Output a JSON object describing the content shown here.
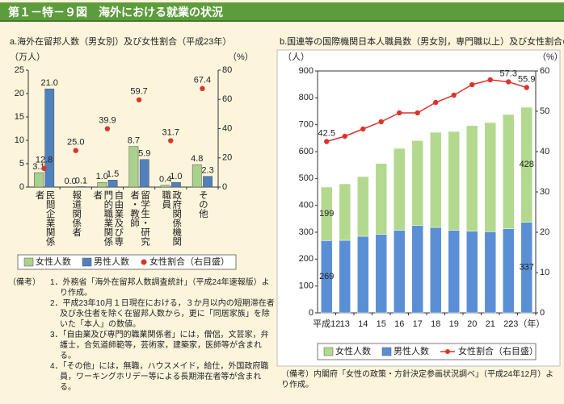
{
  "header": {
    "title": "第１－特－９図　海外における就業の状況"
  },
  "chart_data": [
    {
      "type": "bar",
      "title": "a.海外在留邦人数（男女別）及び女性割合（平成23年）",
      "y_label": "（万人）",
      "y2_label": "（%）",
      "categories": [
        "民間企業関係者",
        "報道関係者",
        "自由業及び専門的職業関係者",
        "留学生・研究者・教師",
        "政府関係機関職員",
        "その他"
      ],
      "series": [
        {
          "name": "女性人数",
          "color": "#a9d18e",
          "values": [
            3.1,
            0.0,
            1.0,
            8.7,
            0.4,
            4.8
          ],
          "value_labels": [
            "3.1",
            "0.0",
            "1.0",
            "8.7",
            "0.4",
            "4.8"
          ]
        },
        {
          "name": "男性人数",
          "color": "#4f81bd",
          "values": [
            21.0,
            0.1,
            1.5,
            5.9,
            1.0,
            2.3
          ],
          "value_labels": [
            "21.0",
            "0.1",
            "1.5",
            "5.9",
            "1.0",
            "2.3"
          ]
        },
        {
          "name": "女性割合（右目盛）",
          "type": "scatter",
          "axis": "y2",
          "color": "#d9352c",
          "values": [
            12.8,
            25.0,
            39.9,
            59.7,
            31.7,
            67.4
          ],
          "value_labels": [
            "12.8",
            "25.0",
            "39.9",
            "59.7",
            "31.7",
            "67.4"
          ]
        }
      ],
      "ylim": [
        0,
        25
      ],
      "yticks": [
        0,
        5,
        10,
        15,
        20,
        25
      ],
      "y2lim": [
        0,
        80
      ],
      "y2ticks": [
        0,
        20,
        40,
        60,
        80
      ]
    },
    {
      "type": "stacked_bar",
      "title": "b.国連等の国際機関日本人職員数（男女別，専門職以上）及び女性割合の推移",
      "y_label": "（人）",
      "y2_label": "（%）",
      "categories": [
        "平成12",
        "13",
        "14",
        "15",
        "16",
        "17",
        "18",
        "19",
        "20",
        "21",
        "22",
        "23（年）"
      ],
      "series": [
        {
          "name": "女性人数",
          "color": "#b3d98f",
          "values": [
            199,
            210,
            222,
            264,
            305,
            316,
            354,
            368,
            393,
            406,
            425,
            428
          ],
          "value_labels": [
            "199",
            null,
            null,
            null,
            null,
            null,
            null,
            null,
            null,
            null,
            null,
            "428"
          ]
        },
        {
          "name": "男性人数",
          "color": "#5a8fd6",
          "values": [
            269,
            270,
            285,
            292,
            307,
            325,
            318,
            307,
            304,
            302,
            313,
            337
          ],
          "value_labels": [
            "269",
            null,
            null,
            null,
            null,
            null,
            null,
            null,
            null,
            null,
            null,
            "337"
          ]
        },
        {
          "name": "女性割合（右目盛）",
          "type": "line",
          "axis": "y2",
          "color": "#d9352c",
          "values": [
            42.5,
            43.8,
            45.6,
            47.4,
            49.6,
            49.6,
            52.2,
            54.0,
            56.6,
            57.8,
            57.3,
            55.9
          ],
          "value_labels": [
            "42.5",
            null,
            null,
            null,
            null,
            null,
            null,
            null,
            null,
            null,
            "57.3",
            "55.9"
          ]
        }
      ],
      "ylim": [
        0,
        900
      ],
      "yticks": [
        0,
        100,
        200,
        300,
        400,
        500,
        600,
        700,
        800,
        900
      ],
      "y2lim": [
        0,
        60
      ],
      "y2ticks": [
        0,
        10,
        20,
        30,
        40,
        50,
        60
      ]
    }
  ],
  "notes_a": {
    "label": "（備考）",
    "items": [
      "1．外務省「海外在留邦人数調査統計」（平成24年速報版）より作成。",
      "2．平成23年10月１日現在における，３か月以内の短期滞在者及び永住者を除く在留邦人数から，更に「同居家族」を除いた「本人」の数値。",
      "3．「自由業及び専門的職業関係者」には，僧侶，文芸家，弁護士，合気道師範等，芸術家，建築家，医師等が含まれる。",
      "4．「その他」には，無職，ハウスメイド，給仕，外国政府職員，ワーキングホリデー等による長期滞在者等が含まれる。"
    ]
  },
  "notes_b": {
    "label": "（備考）",
    "text": "内閣府「女性の政策・方針決定参画状況調べ」（平成24年12月）より作成。"
  }
}
